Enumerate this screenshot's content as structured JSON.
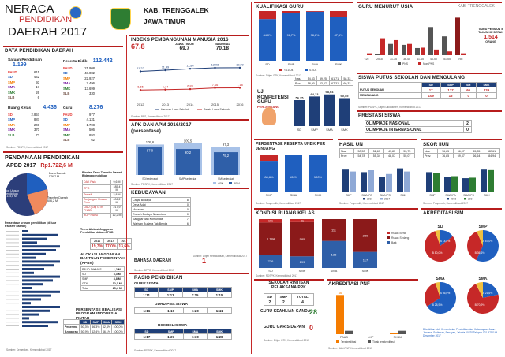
{
  "header": {
    "line1": "NERACA",
    "line2": "PENDIDIKAN",
    "line3": "DAERAH 2017",
    "region": "KAB. TRENGGALEK",
    "province": "JAWA TIMUR"
  },
  "data_pendidikan": {
    "title": "DATA PENDIDIKAN DAERAH",
    "satuan": {
      "label": "Satuan Pendidikan",
      "total": "1.199",
      "rows": [
        {
          "k": "PAUD",
          "v": "615"
        },
        {
          "k": "SD",
          "v": "442"
        },
        {
          "k": "SMP",
          "v": "93"
        },
        {
          "k": "SMA",
          "v": "17"
        },
        {
          "k": "SMK",
          "v": "26"
        },
        {
          "k": "SLB",
          "v": "6"
        }
      ]
    },
    "peserta": {
      "label": "Peserta Didik",
      "total": "112.442",
      "rows": [
        {
          "k": "PAUD",
          "v": "21.908"
        },
        {
          "k": "SD",
          "v": "48.082"
        },
        {
          "k": "SMP",
          "v": "22.927"
        },
        {
          "k": "SMA",
          "v": "7.496"
        },
        {
          "k": "SMK",
          "v": "13.699"
        },
        {
          "k": "SLB",
          "v": "330"
        }
      ]
    },
    "ruang": {
      "label": "Ruang Kelas",
      "total": "4.436",
      "rows": [
        {
          "k": "SD",
          "v": "2.857"
        },
        {
          "k": "SMP",
          "v": "887"
        },
        {
          "k": "SMA",
          "v": "249"
        },
        {
          "k": "SMK",
          "v": "370"
        },
        {
          "k": "SLB",
          "v": "73"
        }
      ]
    },
    "guru": {
      "label": "Guru",
      "total": "8.276",
      "rows": [
        {
          "k": "PAUD",
          "v": "977"
        },
        {
          "k": "SD",
          "v": "4.131"
        },
        {
          "k": "SMP",
          "v": "1.708"
        },
        {
          "k": "SMA",
          "v": "506"
        },
        {
          "k": "SMK",
          "v": "892"
        },
        {
          "k": "SLB",
          "v": "62"
        }
      ]
    },
    "source": "Sumber: PDSPK, Kemendikbud 2017"
  },
  "pendanaan": {
    "title": "PENDANAAN PENDIDIKAN",
    "apbd_label": "APBD 2017",
    "apbd_value": "Rp1.722,6 M",
    "pie_labels": {
      "dana": "Dana Daerah",
      "dana_v": "576,7 M",
      "transfer": "Transfer Daerah",
      "transfer_v": "606,2 M",
      "non": "Non Urusan Pendidikan",
      "non_v": "1.115,8 M"
    },
    "rincian_title": "Rincian Dana Transfer Daerah Bidang pendidikan",
    "rincian": [
      {
        "k": "DAK Fisik",
        "v": "9,6 M"
      },
      {
        "k": "TPG",
        "v": "185,4 M"
      },
      {
        "k": "Tamsil",
        "v": "2,8 M"
      },
      {
        "k": "Tunjangan Khusus Guru",
        "v": "406,2 M"
      },
      {
        "k": "DAU (Gaji GTK PNSD)",
        "v": "217,9 M"
      },
      {
        "k": "BOP PAUD",
        "v": "12,2 M"
      }
    ],
    "persentase_label": "Persentase urusan pendidikan (di luar transfer daerah)",
    "trend_title": "Trend Alokasi Anggaran Pendidikan dalam APBD",
    "trend_years": [
      "2016",
      "2017",
      "2017"
    ],
    "trend_values": [
      "19,3%",
      "17,0%",
      "13,6%"
    ],
    "alokasi_title": "ALOKASI ANGGARAN BANTUAN PEMERINTAH (APBN)",
    "alokasi": [
      {
        "k": "PAUD-DIKMAS",
        "v": "1,2 M"
      },
      {
        "k": "SD",
        "v": "3,3 M"
      },
      {
        "k": "SMP",
        "v": "8,8 M"
      },
      {
        "k": "GTK",
        "v": "12,3 M"
      },
      {
        "k": "Total",
        "v": "25,4 M"
      }
    ],
    "pip_title": "PERSENTASE REALISASI PROGRAM INDONESIA PINTAR",
    "pip_head": [
      "SD",
      "SMP",
      "SMA",
      "SMK"
    ],
    "pip_rows": [
      {
        "k": "Penerima",
        "v": [
          "50,3%",
          "56,3%",
          "42,4%",
          "100,0%"
        ]
      },
      {
        "k": "Anggaran",
        "v": [
          "50,9%",
          "62,4%",
          "46,1%",
          "100,0%"
        ]
      }
    ],
    "source": "Sumber: Kemenkeu, Kemendikbud 2017"
  },
  "ipm": {
    "title": "INDEKS PEMBANGUNAN MANUSIA 2016",
    "value": "67,8",
    "jatim_label": "JAWA TIMUR",
    "jatim_value": "69,7",
    "nasional_label": "NASIONAL",
    "nasional_value": "70,18",
    "years": [
      "2012",
      "2013",
      "2014",
      "2015",
      "2016"
    ],
    "rls": [
      11.22,
      11.49,
      11.84,
      12.08,
      12.09
    ],
    "rls_labels": [
      "11,22",
      "11,49",
      "11,84",
      "12,08",
      "12,09"
    ],
    "hls": [
      6.65,
      6.74,
      6.87,
      7.16,
      7.18
    ],
    "hls_labels": [
      "6,65",
      "6,74",
      "6,87",
      "7,16",
      "7,18"
    ],
    "legend_hls": "Harapan Lama Sekolah",
    "legend_rls": "Rerata Lama Sekolah",
    "source": "Sumber: BPS, Kemendikbud 2017"
  },
  "apk": {
    "title": "APK DAN APM 2016/2017",
    "subtitle": "(persentase)",
    "cats": [
      "SD/sederajat",
      "SMP/sederajat",
      "SM/sederajat"
    ],
    "apk": [
      105.6,
      109.5,
      97.3
    ],
    "apk_labels": [
      "105,6",
      "109,5",
      "97,3"
    ],
    "apm": [
      97.0,
      90.2,
      79.2
    ],
    "apm_labels": [
      "97,0",
      "90,2",
      "79,2"
    ],
    "legend": [
      "APK",
      "APM"
    ],
    "source": "Sumber: PDSPK, Kemendikbud 2017"
  },
  "kebudayaan": {
    "title": "KEBUDAYAAN",
    "rows": [
      {
        "k": "Cagar Budaya",
        "v": "8"
      },
      {
        "k": "Desa Adat",
        "v": "0"
      },
      {
        "k": "Museum",
        "v": "0"
      },
      {
        "k": "Rumah Budaya Nusantara",
        "v": "0"
      },
      {
        "k": "Sanggar dan Komunitas",
        "v": "7"
      },
      {
        "k": "Warisan Budaya Tak Benda",
        "v": "6"
      }
    ],
    "source": "Sumber: Ditjen Kebudayaan, Kemendikbud 2017"
  },
  "bahasa": {
    "title": "BAHASA DAERAH",
    "value": "1",
    "source": "Sumber: BPPB, Kemendikbud 2017"
  },
  "rasio": {
    "title": "RASIO PENDIDIKAN",
    "gurusiswa_title": "GURU:SISWA",
    "head": [
      "SD",
      "SMP",
      "SMA",
      "SMK"
    ],
    "gurusiswa": [
      "1:11",
      "1:13",
      "1:15",
      "1:15"
    ],
    "pns_title": "GURU PNS:SISWA",
    "pns": [
      "1:16",
      "1:19",
      "1:20",
      "1:41"
    ],
    "rombel_title": "ROMBEL:SISWA",
    "rombel": [
      "1:17",
      "1:27",
      "1:30",
      "1:28"
    ],
    "source": "Sumber: PDSPK, Kemendikbud 2017"
  },
  "kualifikasi": {
    "title": "KUALIFIKASI GURU",
    "cats": [
      "SD",
      "SMP",
      "SMA",
      "SMK"
    ],
    "s1": [
      84.0,
      96.7,
      98.6,
      87.6
    ],
    "s1_labels": [
      "84,0%",
      "96,7%",
      "98,6%",
      "87,6%"
    ],
    "legend": [
      "<S1/D4",
      "S1/D4"
    ],
    "source": "Sumber: Ditjen GTK, Kemendikbud 2017"
  },
  "ukg": {
    "title": "UJI KOMPETENSI GURU",
    "subtitle": "PER JENJANG",
    "cats": [
      "SD",
      "SMP",
      "SMA",
      "SMK"
    ],
    "values": [
      56.25,
      64.13,
      68.64,
      60.55
    ],
    "value_labels": [
      "56,25",
      "64,13",
      "68,64",
      "60,55"
    ],
    "nas_label": "Nas.",
    "nas": [
      "54,33",
      "59,25",
      "61,71",
      "58,33"
    ],
    "prov_label": "Prov.",
    "prov": [
      "58,90",
      "63,07",
      "67,31",
      "60,33"
    ]
  },
  "guru_usia": {
    "title": "GURU MENURUT USIA",
    "region": "KAB. TRENGGALEK",
    "groups": [
      "<25",
      "25-30",
      "31-35",
      "36-40",
      "41-45",
      "46-50",
      "51-55",
      ">55"
    ],
    "pns": [
      0,
      80,
      600,
      550,
      380,
      1500,
      1000,
      2000
    ],
    "non": [
      100,
      900,
      800,
      600,
      400,
      300,
      200,
      100
    ],
    "legend": [
      "PNS",
      "Non-PNS"
    ],
    "callout": "GURU PENSIUN 5 TAHUN KE DEPAN",
    "callout_value": "1.514",
    "callout_unit": "ORANG"
  },
  "putus": {
    "title": "SISWA PUTUS SEKOLAH DAN MENGULANG",
    "head": [
      "SD",
      "SMP",
      "SM",
      "SMK"
    ],
    "rows": [
      {
        "k": "PUTUS SEKOLAH",
        "v": [
          "17",
          "137",
          "66",
          "239"
        ]
      },
      {
        "k": "MENGULANG",
        "v": [
          "109",
          "15",
          "0",
          "0"
        ]
      }
    ],
    "source": "Sumber: PDSPK, Ditjen Dikdasmen, Kemendikbud 2017"
  },
  "prestasi": {
    "title": "PRESTASI SISWA",
    "rows": [
      {
        "k": "OLIMPIADE NASIONAL",
        "v": "2"
      },
      {
        "k": "OLIMPIADE INTERNASIONAL",
        "v": "0"
      }
    ]
  },
  "unbk": {
    "title": "PERSENTASE PESERTA UNBK PER JENJANG",
    "cats": [
      "SMP",
      "SMA",
      "SMK"
    ],
    "values": [
      84.6,
      100,
      100
    ],
    "value_labels": [
      "84,6%",
      "100%",
      "100%"
    ],
    "source": "Sumber: Puspendik, Kemendikbud 2017"
  },
  "hasil_un": {
    "title": "HASIL UN",
    "nas_label": "Nas.",
    "nas": [
      "50,53",
      "52,67",
      "47,83",
      "53,75"
    ],
    "prov_label": "Prov.",
    "prov": [
      "54,78",
      "55,34",
      "48,07",
      "55,07"
    ],
    "cats": [
      "SMP",
      "SMA IPA",
      "SMA IPS",
      "SMK"
    ],
    "y2016": [
      56.0,
      52.0,
      45.0,
      58.0
    ],
    "y2017": [
      53.0,
      55.0,
      49.0,
      53.0
    ],
    "legend": [
      "2016",
      "2017"
    ],
    "source": "Sumber: Puspendik, Kemendikbud 2017"
  },
  "skor_iiun": {
    "title": "SKOR IIUN",
    "nas_label": "Nas.",
    "nas": [
      "76,85",
      "66,97",
      "65,85",
      "82,61"
    ],
    "prov_label": "Prov.",
    "prov": [
      "76,85",
      "69,37",
      "66,64",
      "84,94"
    ],
    "cats": [
      "SMP",
      "SMA IPA",
      "SMA IPS",
      "SMK"
    ],
    "y2016": [
      80,
      70,
      68,
      85
    ],
    "y2017": [
      78,
      72,
      69,
      84
    ],
    "legend": [
      "2016",
      "2017"
    ],
    "source": "Sumber: Puspendik, Kemendikbud 2017"
  },
  "kondisi": {
    "title": "KONDISI RUANG KELAS",
    "cats": [
      "SD",
      "SMP",
      "SMA",
      "SMK"
    ],
    "baik": [
      736,
      199,
      138,
      117
    ],
    "rusak_ringan": [
      1784,
      585,
      111,
      239
    ],
    "rusak_sedang": [
      191,
      51,
      0,
      0
    ],
    "baik_labels": [
      "736",
      "199",
      "138",
      "117"
    ],
    "ringan_labels": [
      "1.784",
      "585",
      "111",
      "239"
    ],
    "sedang_labels": [
      "191",
      "51",
      "",
      ""
    ],
    "legend": [
      "Rusak Berat",
      "Rusak Sedang",
      "Baik"
    ],
    "source": "Sumber: PDSPK, Kemendikbud 2017"
  },
  "rintisan": {
    "title": "SEKOLAH RINTISAN PELAKSANA PPK",
    "head": [
      "SD",
      "SMP",
      "TOTAL"
    ],
    "values": [
      "2",
      "2",
      "4"
    ]
  },
  "keahlian": {
    "title": "GURU KEAHLIAN GANDA",
    "value": "28"
  },
  "garis_depan": {
    "title": "GURU GARIS DEPAN",
    "value": "0",
    "source": "Sumber: Ditjen GTK, Kemendikbud 2017"
  },
  "pnf": {
    "title": "AKREDITASI PNF",
    "cats": [
      "PAUD",
      "LKP",
      "PKBM"
    ],
    "terakreditasi": [
      46,
      0,
      1
    ],
    "tidak": [
      4,
      0,
      4
    ],
    "top_label": "46",
    "legend": [
      "Terakreditasi",
      "Tidak terakreditasi"
    ],
    "source": "Sumber: BAN-PNF, Kemendikbud 2017"
  },
  "akreditasi": {
    "title": "AKREDITASI S/M",
    "pies": [
      {
        "name": "SD",
        "A": "14,5%",
        "B": "80,0%"
      },
      {
        "name": "SMP",
        "A": "57,0%",
        "B": "36,6%"
      },
      {
        "name": "SMA",
        "A": "66,0%",
        "B": "28,9%"
      },
      {
        "name": "SMK",
        "A": "21,6%",
        "B": "70,9%"
      }
    ],
    "footer": "Diterbitkan oleh Kementerian Pendidikan dan Kebudayaan Jalan Jenderal Sudirman, Senayan, Jakarta 10270 Telepon 021-5711144 Desember 2017"
  }
}
